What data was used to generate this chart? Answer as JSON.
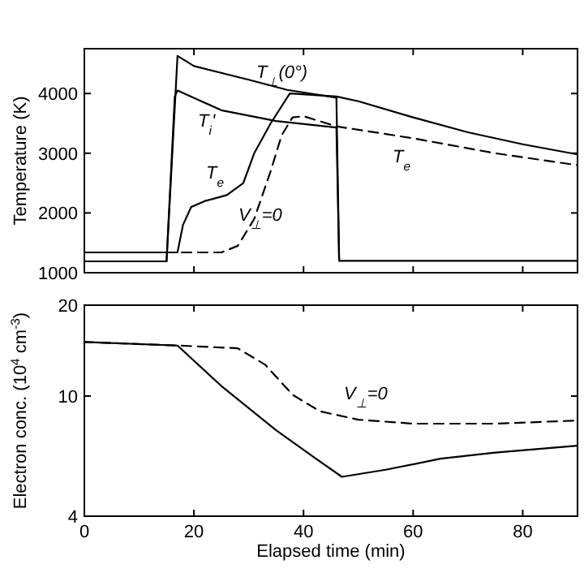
{
  "chart_data": [
    {
      "type": "line",
      "ylabel": "Temperature (K)",
      "xlim": [
        0,
        90
      ],
      "xticks": [
        0,
        20,
        40,
        60,
        80
      ],
      "ylim": [
        1000,
        4750
      ],
      "yticks": [
        1000,
        2000,
        3000,
        4000
      ],
      "tick_labels": "y",
      "grid": false,
      "marker": "none",
      "series": [
        {
          "name": "T$_{⊥}$(0°)",
          "color": "#000000",
          "line_style": "solid",
          "x": [
            0,
            15,
            17,
            20,
            30,
            37,
            46,
            46.5,
            90
          ],
          "values": [
            1190,
            1190,
            4630,
            4460,
            4230,
            4060,
            3930,
            1200,
            1200
          ]
        },
        {
          "name": "T$_{i}$'",
          "color": "#000000",
          "line_style": "solid",
          "x": [
            0,
            15,
            16.5,
            17,
            25,
            35,
            46,
            46.5
          ],
          "values": [
            1190,
            1190,
            3950,
            4050,
            3720,
            3540,
            3430,
            1200
          ]
        },
        {
          "name": "T$_{e}$",
          "color": "#000000",
          "line_style": "solid",
          "x": [
            0,
            17,
            18,
            19.5,
            22,
            26,
            29,
            31,
            34,
            37.5,
            46,
            50,
            60,
            70,
            80,
            90
          ],
          "values": [
            1340,
            1340,
            1800,
            2100,
            2200,
            2300,
            2500,
            3000,
            3500,
            4000,
            3950,
            3870,
            3600,
            3350,
            3150,
            2980
          ]
        },
        {
          "name": "V$_{⊥}$=0",
          "color": "#000000",
          "line_style": "dashed",
          "x": [
            0,
            17,
            25,
            28,
            31,
            34,
            36,
            38,
            40,
            46,
            60,
            75,
            90
          ],
          "values": [
            1340,
            1340,
            1340,
            1450,
            1900,
            2700,
            3300,
            3600,
            3620,
            3450,
            3250,
            3000,
            2800
          ]
        }
      ],
      "annotations": [
        "T$_{e}$"
      ]
    },
    {
      "type": "line",
      "xlabel": "Elapsed time (min)",
      "ylabel": "Electron conc. (10$^{4}$ cm$^{-3}$)",
      "xlim": [
        0,
        90
      ],
      "xticks": [
        0,
        20,
        40,
        60,
        80
      ],
      "ylim": [
        4,
        20
      ],
      "yticks": [
        4,
        10,
        20
      ],
      "log": true,
      "grid": false,
      "marker": "none",
      "series": [
        {
          "color": "#000000",
          "line_style": "solid",
          "x": [
            0,
            17,
            25,
            35,
            42,
            47,
            55,
            65,
            75,
            90
          ],
          "values": [
            15.1,
            14.7,
            10.8,
            7.7,
            6.25,
            5.4,
            5.7,
            6.2,
            6.5,
            6.85
          ]
        },
        {
          "name": "V$_{⊥}$=0",
          "color": "#000000",
          "line_style": "dashed",
          "x": [
            0,
            17,
            28,
            33,
            38,
            43,
            50,
            60,
            75,
            90
          ],
          "values": [
            15.1,
            14.7,
            14.4,
            12.7,
            10.1,
            8.9,
            8.35,
            8.1,
            8.1,
            8.3
          ]
        }
      ]
    }
  ]
}
